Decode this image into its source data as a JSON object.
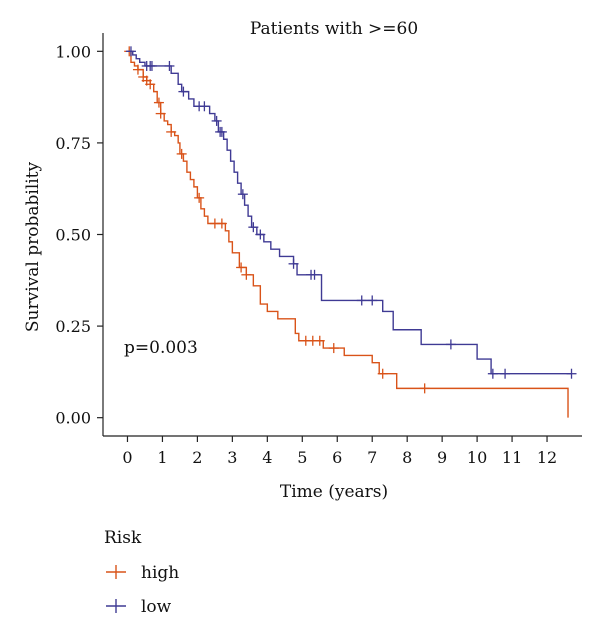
{
  "chart_data": {
    "type": "line",
    "step": true,
    "title": "Patients with >=60",
    "xlabel": "Time (years)",
    "ylabel": "Survival probability",
    "xlim": [
      -0.7,
      13.0
    ],
    "ylim": [
      -0.05,
      1.05
    ],
    "x_ticks": [
      0,
      1,
      2,
      3,
      4,
      5,
      6,
      7,
      8,
      9,
      10,
      11,
      12
    ],
    "x_tick_labels": [
      "0",
      "1",
      "2",
      "3",
      "4",
      "5",
      "6",
      "7",
      "8",
      "9",
      "10",
      "11",
      "12"
    ],
    "y_ticks": [
      0,
      0.25,
      0.5,
      0.75,
      1.0
    ],
    "y_tick_labels": [
      "0.00",
      "0.25",
      "0.50",
      "0.75",
      "1.00"
    ],
    "grid": false,
    "annotation": "p=0.003",
    "legend": {
      "title": "Risk",
      "placement": "bottom-left",
      "entries": [
        "high",
        "low"
      ]
    },
    "series": [
      {
        "name": "high",
        "color": "#d95319",
        "x": [
          0,
          0.1,
          0.2,
          0.3,
          0.45,
          0.55,
          0.65,
          0.75,
          0.85,
          0.95,
          1.05,
          1.15,
          1.25,
          1.35,
          1.45,
          1.5,
          1.6,
          1.7,
          1.8,
          1.9,
          2.0,
          2.1,
          2.2,
          2.3,
          2.5,
          2.8,
          2.9,
          3.0,
          3.2,
          3.4,
          3.6,
          3.8,
          4.0,
          4.3,
          4.8,
          4.9,
          5.6,
          6.2,
          7.0,
          7.2,
          7.7,
          12.6
        ],
        "y": [
          1.0,
          0.97,
          0.96,
          0.95,
          0.93,
          0.92,
          0.91,
          0.89,
          0.86,
          0.83,
          0.81,
          0.8,
          0.78,
          0.77,
          0.75,
          0.72,
          0.7,
          0.67,
          0.65,
          0.63,
          0.6,
          0.57,
          0.55,
          0.53,
          0.53,
          0.51,
          0.48,
          0.45,
          0.41,
          0.39,
          0.36,
          0.31,
          0.29,
          0.27,
          0.23,
          0.21,
          0.19,
          0.17,
          0.15,
          0.12,
          0.08,
          0.0
        ],
        "censored_x": [
          0.05,
          0.3,
          0.45,
          0.55,
          0.65,
          0.9,
          0.95,
          1.25,
          1.55,
          2.05,
          2.5,
          2.7,
          3.25,
          3.4,
          5.1,
          5.3,
          5.5,
          5.9,
          7.3,
          8.5
        ]
      },
      {
        "name": "low",
        "color": "#3f3a94",
        "x": [
          0,
          0.15,
          0.25,
          0.35,
          0.5,
          1.25,
          1.45,
          1.55,
          1.75,
          1.9,
          2.35,
          2.5,
          2.6,
          2.75,
          2.85,
          2.95,
          3.05,
          3.15,
          3.25,
          3.35,
          3.45,
          3.55,
          3.7,
          3.9,
          4.1,
          4.35,
          4.75,
          4.85,
          5.55,
          6.8,
          7.3,
          7.6,
          8.4,
          9.3,
          10.0,
          10.4,
          12.7
        ],
        "y": [
          1.0,
          0.99,
          0.98,
          0.97,
          0.96,
          0.94,
          0.91,
          0.89,
          0.87,
          0.85,
          0.83,
          0.81,
          0.78,
          0.76,
          0.73,
          0.7,
          0.67,
          0.64,
          0.61,
          0.58,
          0.55,
          0.52,
          0.5,
          0.48,
          0.46,
          0.44,
          0.42,
          0.39,
          0.32,
          0.32,
          0.29,
          0.24,
          0.2,
          0.2,
          0.16,
          0.12,
          0.12
        ],
        "censored_x": [
          0.1,
          0.55,
          0.65,
          0.7,
          1.2,
          1.6,
          2.05,
          2.2,
          2.55,
          2.65,
          2.7,
          3.3,
          3.6,
          3.8,
          4.75,
          5.25,
          5.35,
          6.7,
          7.0,
          9.25,
          10.45,
          10.8,
          12.7
        ]
      }
    ]
  }
}
